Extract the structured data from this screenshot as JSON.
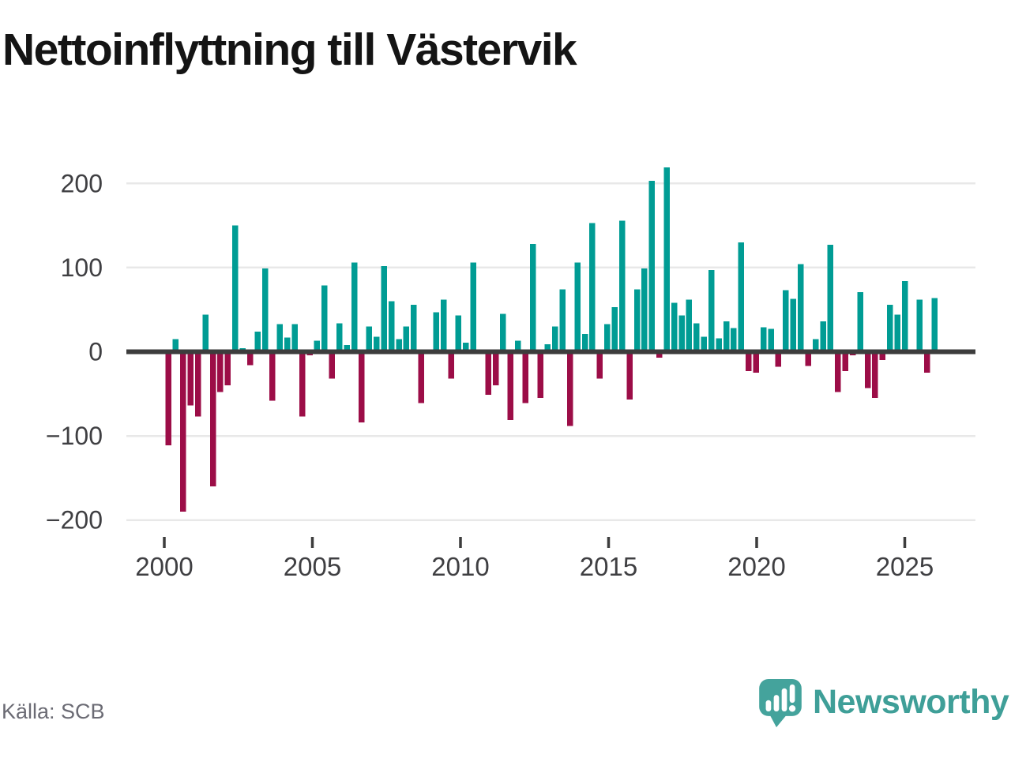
{
  "title": "Nettoinflyttning till Västervik",
  "source": "Källa: SCB",
  "branding": {
    "logo_text": "Newsworthy",
    "logo_icon": "speech-bubble-barchart-icon"
  },
  "colors": {
    "positive_bar": "#009c94",
    "negative_bar": "#9c0d47",
    "axis_line": "#3d3d3d",
    "gridline": "#e8e8e8",
    "tick_label": "#3f3f42",
    "brand_teal": "#3f9f98",
    "title_text": "#141414",
    "source_text": "#6b6b74"
  },
  "chart_data": {
    "type": "bar",
    "title": "Nettoinflyttning till Västervik",
    "frequency": "quarterly",
    "start_year": 2000,
    "start_quarter": 1,
    "values": [
      -111,
      15,
      -190,
      -64,
      -77,
      44,
      -160,
      -48,
      -40,
      150,
      4,
      -16,
      24,
      99,
      -58,
      33,
      17,
      33,
      -77,
      -4,
      13,
      79,
      -32,
      34,
      8,
      106,
      -84,
      30,
      18,
      102,
      60,
      15,
      30,
      56,
      -61,
      0,
      47,
      62,
      -32,
      43,
      11,
      106,
      0,
      -51,
      -40,
      45,
      -81,
      13,
      -61,
      128,
      -55,
      9,
      30,
      74,
      -88,
      106,
      21,
      153,
      -32,
      33,
      53,
      156,
      -57,
      74,
      99,
      203,
      -7,
      219,
      58,
      43,
      62,
      34,
      18,
      97,
      16,
      36,
      28,
      130,
      -23,
      -25,
      29,
      27,
      -18,
      73,
      63,
      104,
      -17,
      15,
      36,
      127,
      -48,
      -23,
      -4,
      71,
      -43,
      -55,
      -10,
      56,
      44,
      84,
      0,
      62,
      -25,
      64
    ],
    "y_ticks": [
      200,
      100,
      0,
      -100,
      -200
    ],
    "y_tick_labels": [
      "200",
      "100",
      "0",
      "−100",
      "−200"
    ],
    "x_ticks": [
      2000,
      2005,
      2010,
      2015,
      2020,
      2025
    ],
    "x_tick_labels": [
      "2000",
      "2005",
      "2010",
      "2015",
      "2020",
      "2025"
    ],
    "ylim": [
      -220,
      235
    ],
    "grid": true,
    "legend": "none",
    "positive_color": "#009c94",
    "negative_color": "#9c0d47"
  }
}
